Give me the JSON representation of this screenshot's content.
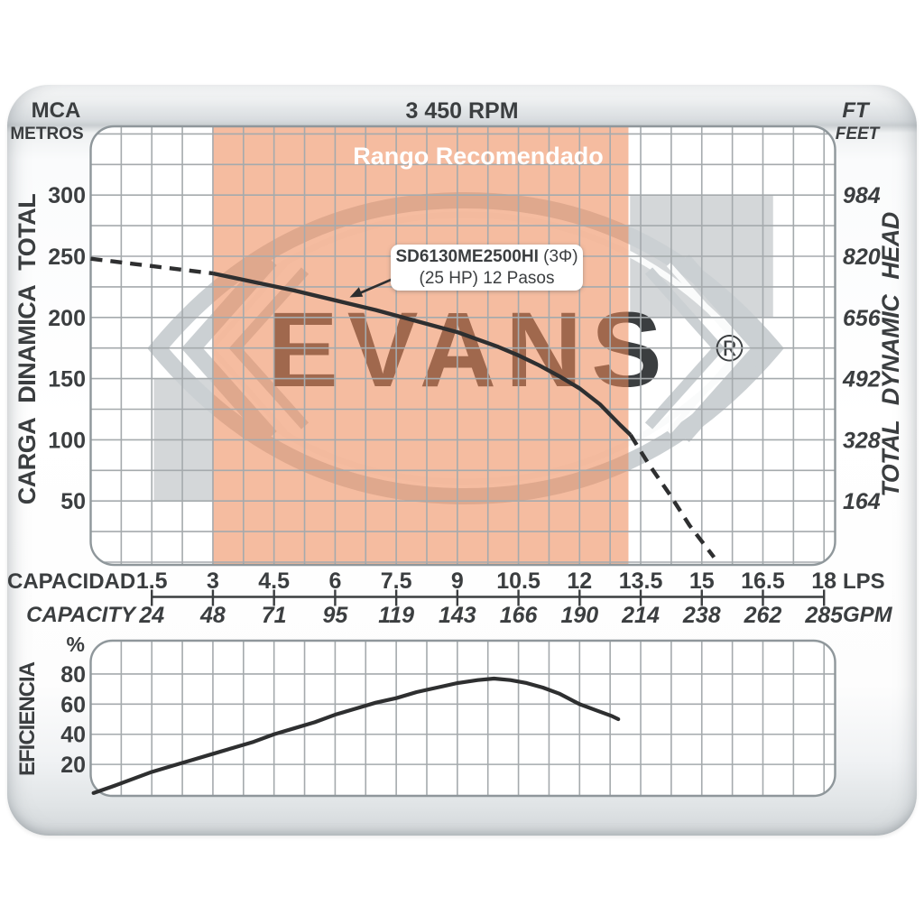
{
  "header": {
    "left_unit_primary": "MCA",
    "left_unit_secondary": "METROS",
    "rpm": "3 450 RPM",
    "right_unit_primary": "FT",
    "right_unit_secondary": "FEET"
  },
  "left_axis_label": "CARGA DINAMICA TOTAL",
  "right_axis_label": "TOTAL DYNAMIC HEAD",
  "efficiency_label": "EFICIENCIA",
  "efficiency_unit": "%",
  "capacity_row_top": {
    "label": "CAPACIDAD",
    "unit": "LPS"
  },
  "capacity_row_bottom": {
    "label": "CAPACITY",
    "unit": "GPM"
  },
  "recommended_label": "Rango Recomendado",
  "curve_callout": {
    "model": "SD6130ME2500HI",
    "phase": " (3Φ)",
    "line2": "(25 HP) 12 Pasos"
  },
  "watermark": {
    "text": "EVANS",
    "registered": "®"
  },
  "colors": {
    "recommended_band": "rgba(238,137,88,0.57)",
    "gray_region": "#D4D7D9",
    "grid_line": "#A5AAAD",
    "plot_border": "#8F979B",
    "curve": "#2E2F30",
    "text": "#3B3E40",
    "watermark_gray": "#CBD0D3",
    "watermark_accent": "#FAFBFB",
    "band_label_text": "#FFFFFF"
  },
  "chart_data": {
    "type": "line",
    "title": "3 450 RPM",
    "x_axis": {
      "ticks_lps": [
        1.5,
        3,
        4.5,
        6,
        7.5,
        9,
        10.5,
        12,
        13.5,
        15,
        16.5,
        18
      ],
      "ticks_gpm": [
        24,
        48,
        71,
        95,
        119,
        143,
        166,
        190,
        214,
        238,
        262,
        285
      ],
      "grid_step_lps": 0.75,
      "range_lps": [
        0,
        18.3
      ]
    },
    "head_axis": {
      "ticks_metros": [
        300,
        250,
        200,
        150,
        100,
        50
      ],
      "ticks_feet": [
        984,
        820,
        656,
        492,
        328,
        164
      ],
      "grid_step_m": 25,
      "range_m": [
        0,
        358
      ]
    },
    "head_curve_m_vs_lps": {
      "dashed_before": [
        [
          0,
          248
        ],
        [
          1,
          244
        ],
        [
          2,
          240
        ],
        [
          3,
          236
        ]
      ],
      "solid": [
        [
          3,
          236
        ],
        [
          4,
          229
        ],
        [
          5,
          222
        ],
        [
          6,
          214
        ],
        [
          7,
          206
        ],
        [
          8,
          197
        ],
        [
          9,
          188
        ],
        [
          10,
          176
        ],
        [
          10.5,
          169
        ],
        [
          11,
          161
        ],
        [
          11.5,
          152
        ],
        [
          12,
          142
        ],
        [
          12.5,
          129
        ],
        [
          13,
          112
        ],
        [
          13.25,
          104
        ]
      ],
      "dashed_after": [
        [
          13.25,
          104
        ],
        [
          13.7,
          80
        ],
        [
          14.2,
          56
        ],
        [
          14.7,
          30
        ],
        [
          15.3,
          4
        ]
      ]
    },
    "recommended_range_lps": [
      3,
      13.2
    ],
    "other_models_regions": [
      {
        "lps": [
          1.55,
          3.02
        ],
        "m": [
          50,
          150
        ]
      },
      {
        "lps": [
          13.24,
          16.75
        ],
        "m": [
          200,
          300
        ]
      }
    ],
    "efficiency": {
      "ticks_pct": [
        80,
        60,
        40,
        20
      ],
      "grid_step_pct": 20,
      "range_pct": [
        0,
        103
      ],
      "curve_pct_vs_lps": [
        [
          0.07,
          1
        ],
        [
          0.5,
          5
        ],
        [
          1,
          10
        ],
        [
          1.5,
          15
        ],
        [
          2,
          19
        ],
        [
          2.5,
          23
        ],
        [
          3,
          27
        ],
        [
          3.5,
          31
        ],
        [
          4,
          35
        ],
        [
          4.5,
          40
        ],
        [
          5,
          44
        ],
        [
          5.5,
          48
        ],
        [
          6,
          53
        ],
        [
          6.5,
          57
        ],
        [
          7,
          61
        ],
        [
          7.5,
          64
        ],
        [
          8,
          68
        ],
        [
          8.5,
          71
        ],
        [
          9,
          74
        ],
        [
          9.5,
          76
        ],
        [
          9.9,
          77
        ],
        [
          10.3,
          76
        ],
        [
          10.7,
          74
        ],
        [
          11.1,
          71
        ],
        [
          11.5,
          67
        ],
        [
          12,
          60
        ],
        [
          12.4,
          56
        ],
        [
          12.8,
          52
        ],
        [
          12.95,
          50
        ]
      ]
    }
  }
}
